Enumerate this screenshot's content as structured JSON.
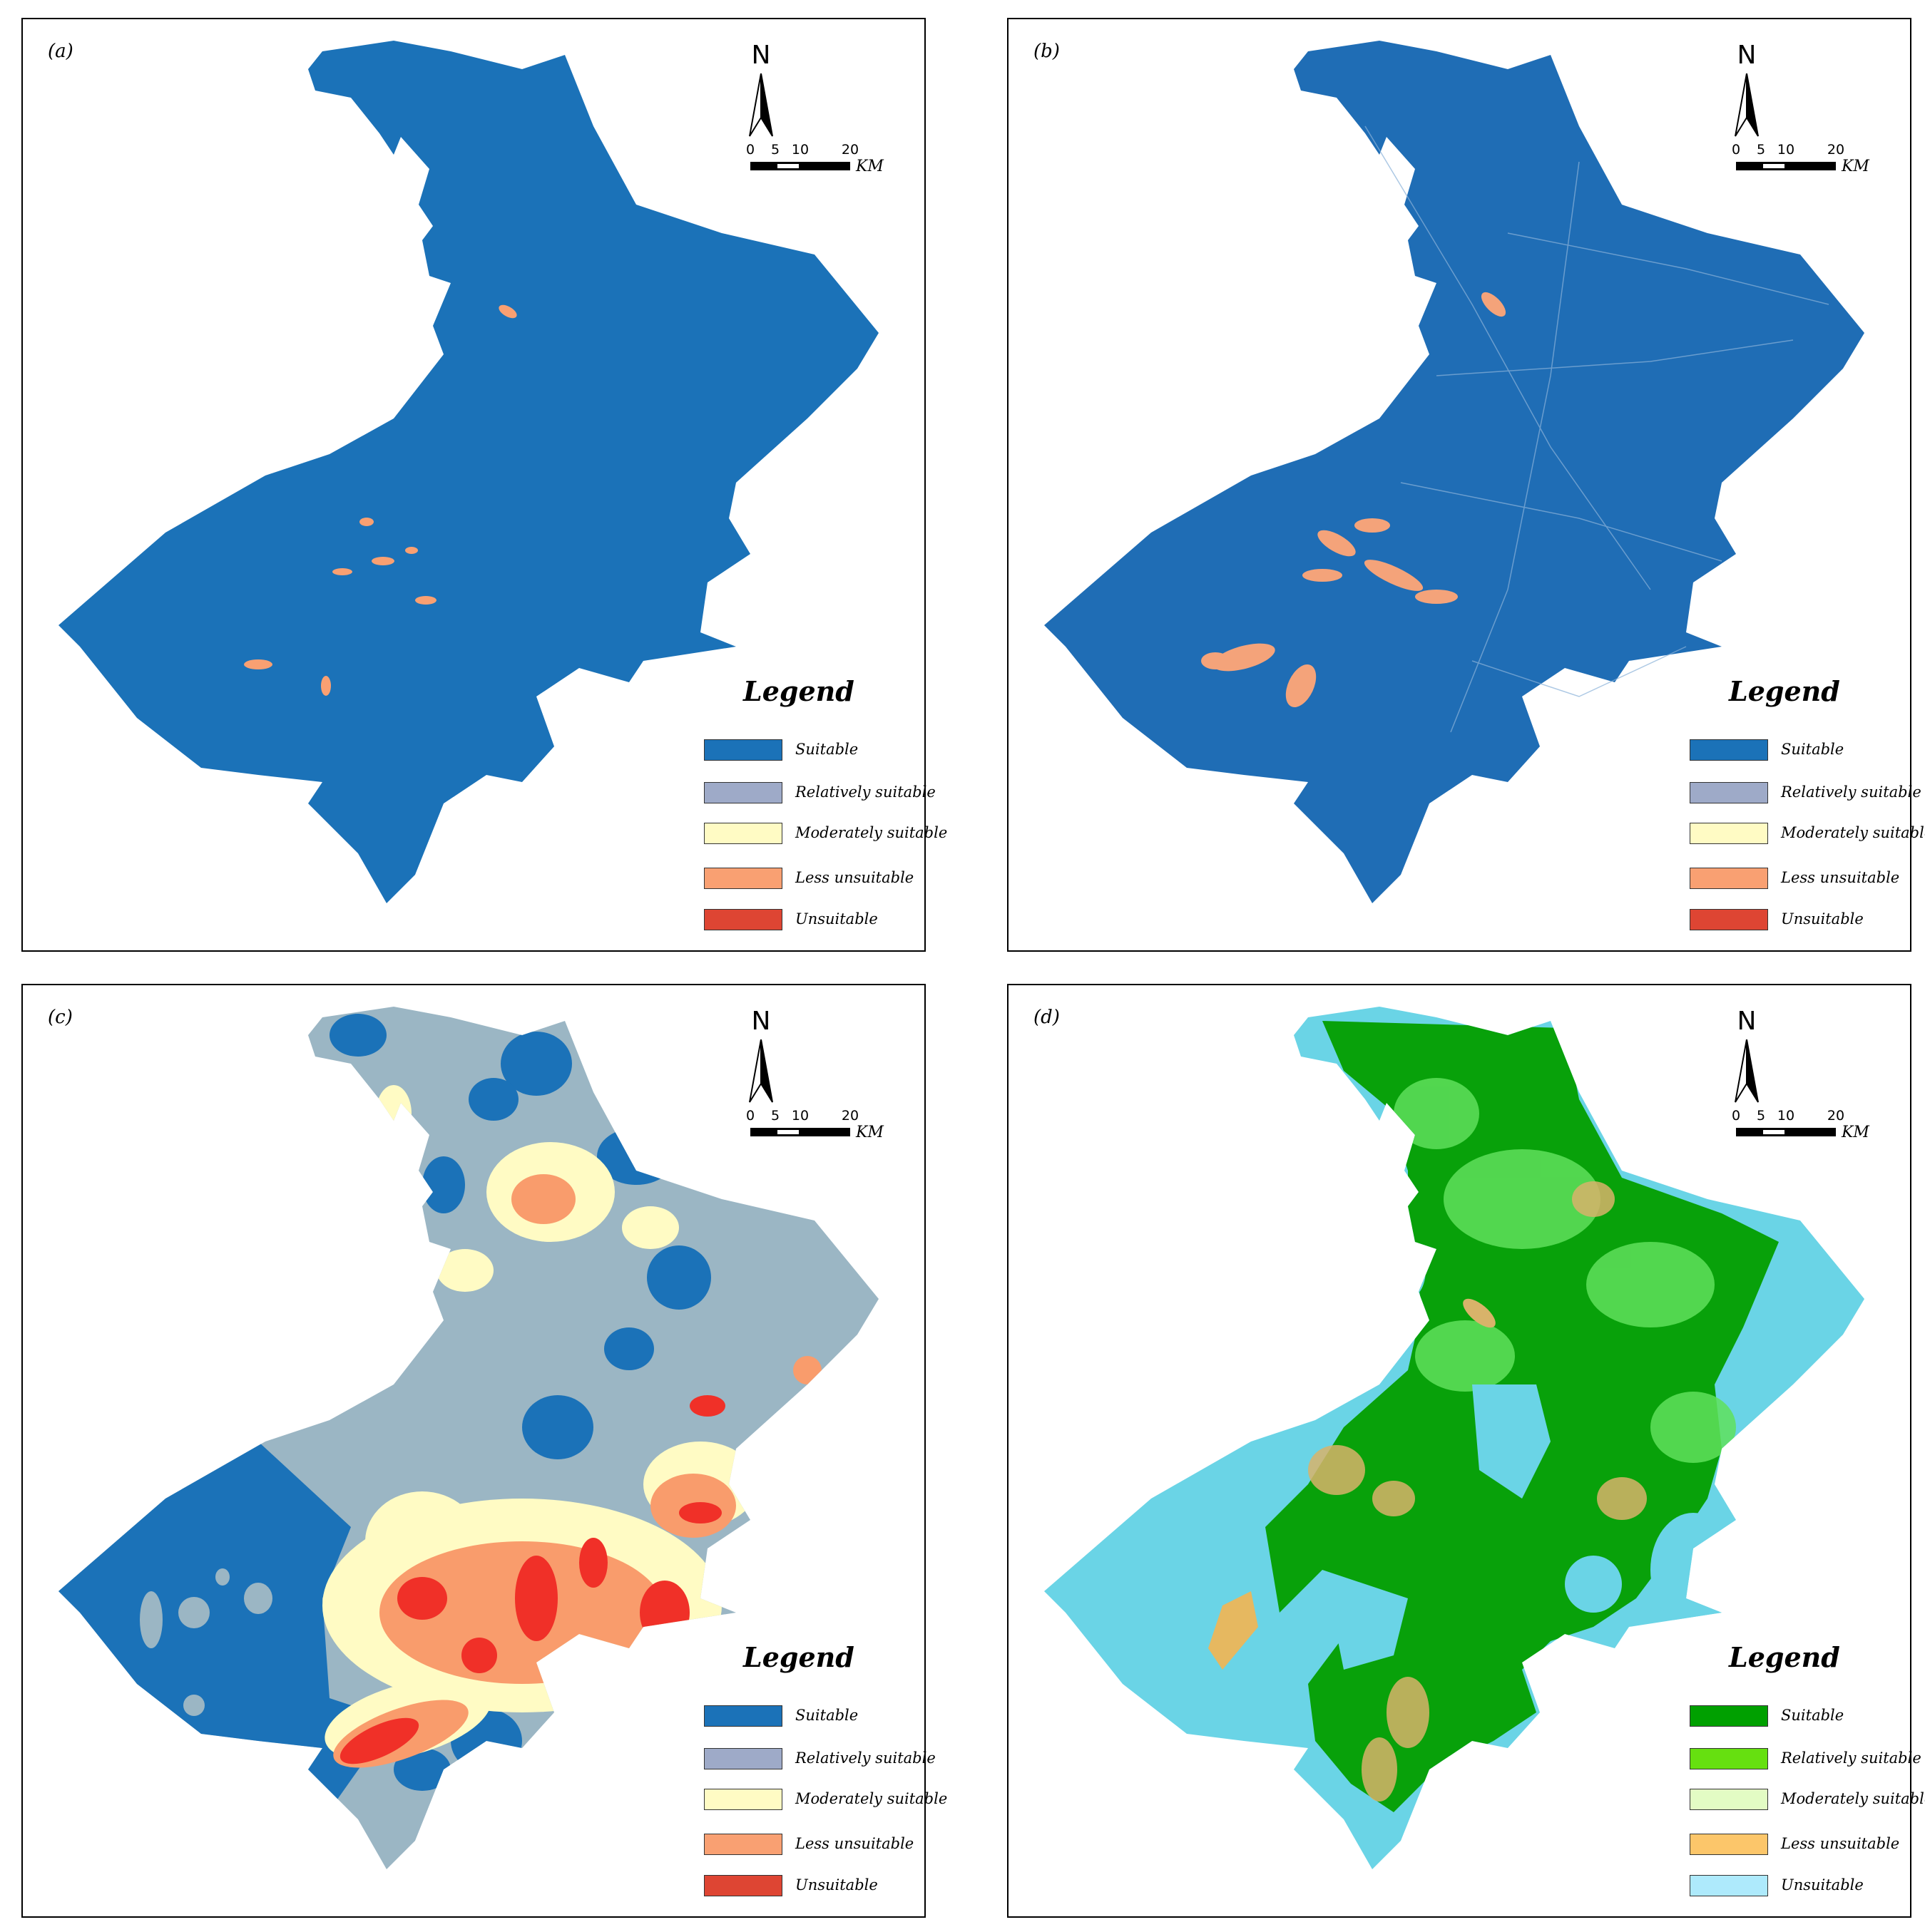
{
  "panels": [
    {
      "id": "a",
      "label": "(a)",
      "legend": {
        "title": "Legend",
        "items": [
          {
            "label": "Suitable",
            "color": "#1b72b8"
          },
          {
            "label": "Relatively  suitable",
            "color": "#9eaac8"
          },
          {
            "label": "Moderately suitable",
            "color": "#fffbc4"
          },
          {
            "label": "Less unsuitable",
            "color": "#f9a072"
          },
          {
            "label": "Unsuitable",
            "color": "#de4533"
          }
        ]
      }
    },
    {
      "id": "b",
      "label": "(b)",
      "legend": {
        "title": "Legend",
        "items": [
          {
            "label": "Suitable",
            "color": "#1b72b8"
          },
          {
            "label": "Relatively suitable",
            "color": "#9eaac8"
          },
          {
            "label": "Moderately suitable",
            "color": "#fffbc4"
          },
          {
            "label": "Less unsuitable",
            "color": "#f9a072"
          },
          {
            "label": "Unsuitable",
            "color": "#de4533"
          }
        ]
      }
    },
    {
      "id": "c",
      "label": "(c)",
      "legend": {
        "title": "Legend",
        "items": [
          {
            "label": "Suitable",
            "color": "#1b72b8"
          },
          {
            "label": "Relatively suitable",
            "color": "#9eaac8"
          },
          {
            "label": "Moderately suitable",
            "color": "#fffbc4"
          },
          {
            "label": "Less unsuitable",
            "color": "#f9a072"
          },
          {
            "label": "Unsuitable",
            "color": "#de4533"
          }
        ]
      }
    },
    {
      "id": "d",
      "label": "(d)",
      "legend": {
        "title": "Legend",
        "items": [
          {
            "label": "Suitable",
            "color": "#00a000"
          },
          {
            "label": "Relatively suitable",
            "color": "#66e010"
          },
          {
            "label": "Moderately suitable",
            "color": "#e3fcc4"
          },
          {
            "label": "Less unsuitable",
            "color": "#fcc66a"
          },
          {
            "label": "Unsuitable",
            "color": "#aeeafc"
          }
        ]
      }
    }
  ],
  "compass": {
    "north": "N"
  },
  "scalebar": {
    "ticks": [
      "0",
      "5",
      "10",
      "20"
    ],
    "unit": "KM"
  }
}
